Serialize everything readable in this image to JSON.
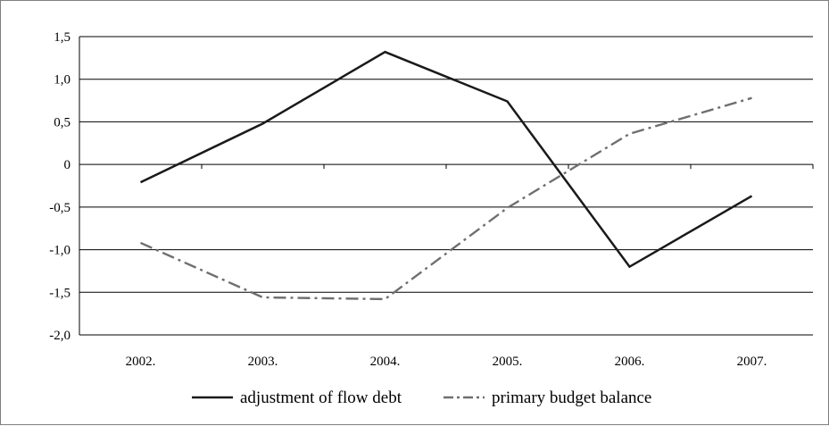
{
  "chart_data": {
    "type": "line",
    "title": "",
    "xlabel": "",
    "ylabel": "",
    "categories": [
      "2002.",
      "2003.",
      "2004.",
      "2005.",
      "2006.",
      "2007."
    ],
    "y_ticks": [
      "1,5",
      "1,0",
      "0,5",
      "0",
      "-0,5",
      "-1,0",
      "-1,5",
      "-2,0"
    ],
    "ylim": [
      -2.0,
      1.5
    ],
    "grid": "horizontal",
    "legend_position": "bottom",
    "series": [
      {
        "name": "adjustment of flow debt",
        "values": [
          -0.21,
          0.48,
          1.32,
          0.74,
          -1.2,
          -0.37
        ],
        "color": "#1a1a1a",
        "style": "solid"
      },
      {
        "name": "primary budget balance",
        "values": [
          -0.92,
          -1.56,
          -1.58,
          -0.51,
          0.36,
          0.78
        ],
        "color": "#6f6f6f",
        "style": "dash-dot"
      }
    ]
  }
}
